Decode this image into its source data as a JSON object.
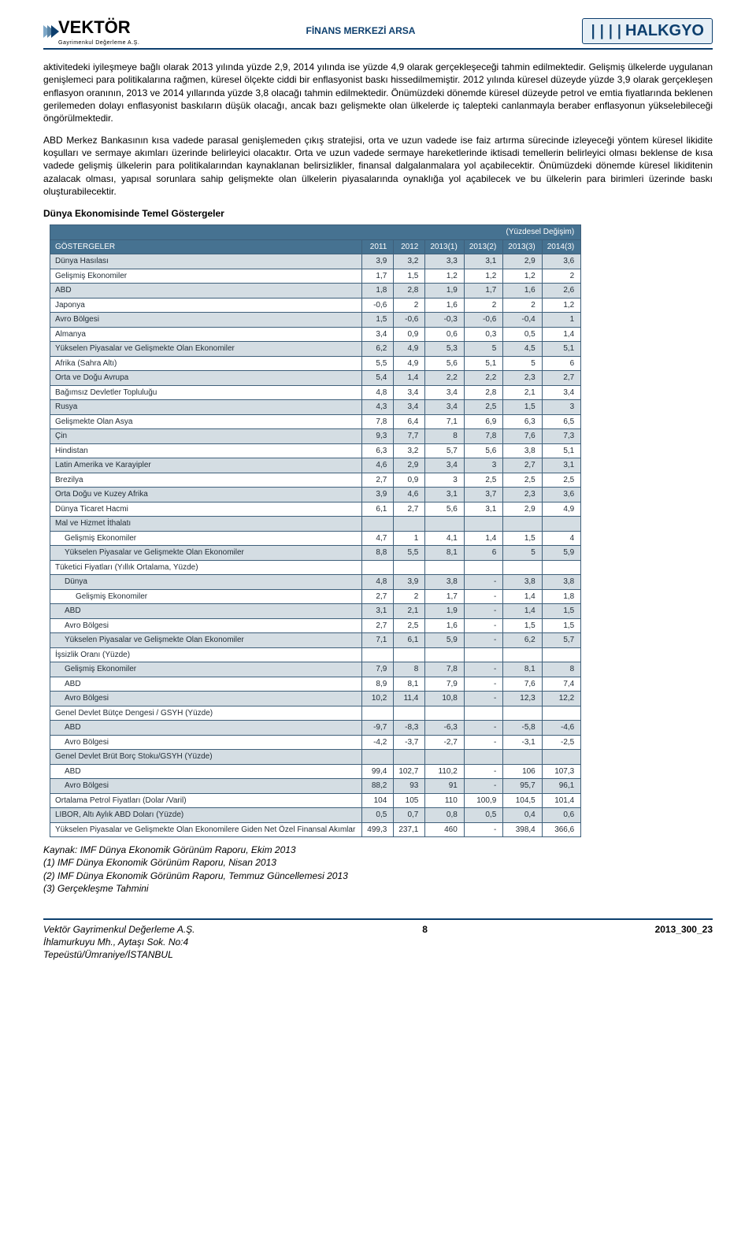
{
  "header": {
    "left_brand": "VEKTÖR",
    "left_sub": "Gayrimenkul Değerleme A.Ş.",
    "mid": "FİNANS MERKEZİ ARSA",
    "right_brand": "HALKGYO",
    "mid_color": "#0d3f6e",
    "rule_color": "#0d3f6e",
    "arrow_colors": [
      "#7da7c7",
      "#5b86a7",
      "#0d3f6e"
    ]
  },
  "paragraphs": {
    "p1": "aktivitedeki iyileşmeye bağlı olarak 2013 yılında yüzde 2,9, 2014 yılında ise yüzde 4,9 olarak gerçekleşeceği tahmin edilmektedir. Gelişmiş ülkelerde uygulanan genişlemeci para politikalarına rağmen, küresel ölçekte ciddi bir enflasyonist baskı hissedilmemiştir. 2012 yılında küresel düzeyde yüzde 3,9 olarak gerçekleşen enflasyon oranının, 2013 ve 2014 yıllarında yüzde 3,8 olacağı tahmin edilmektedir. Önümüzdeki dönemde küresel düzeyde petrol ve emtia fiyatlarında beklenen gerilemeden dolayı enflasyonist baskıların düşük olacağı, ancak bazı gelişmekte olan ülkelerde iç talepteki canlanmayla beraber enflasyonun yükselebileceği öngörülmektedir.",
    "p2": "ABD Merkez Bankasının kısa vadede parasal genişlemeden çıkış stratejisi, orta ve uzun vadede ise faiz artırma sürecinde izleyeceği yöntem küresel likidite koşulları ve sermaye akımları üzerinde belirleyici olacaktır. Orta ve uzun vadede sermaye hareketlerinde iktisadi temellerin belirleyici olması beklense de kısa vadede gelişmiş ülkelerin para politikalarından kaynaklanan belirsizlikler, finansal dalgalanmalara yol açabilecektir. Önümüzdeki dönemde küresel likiditenin azalacak olması, yapısal sorunlara sahip gelişmekte olan ülkelerin piyasalarında oynaklığa yol açabilecek ve bu ülkelerin para birimleri üzerinde baskı oluşturabilecektir.",
    "sect_title": "Dünya Ekonomisinde Temel Göstergeler"
  },
  "table": {
    "border_color": "#3e5f7a",
    "header_bg": "#467291",
    "header_fg": "#ffffff",
    "row_alt_bg": "#d4dde3",
    "row_bg": "#ffffff",
    "cell_fg": "#222d36",
    "font_size": 10,
    "note": "(Yüzdesel Değişim)",
    "col0": "GÖSTERGELER",
    "headers": [
      "2011",
      "2012",
      "2013(1)",
      "2013(2)",
      "2013(3)",
      "2014(3)"
    ],
    "rows": [
      {
        "k": "Dünya Hasılası",
        "v": [
          3.9,
          3.2,
          3.3,
          3.1,
          2.9,
          3.6
        ],
        "pad": 0
      },
      {
        "k": "Gelişmiş Ekonomiler",
        "v": [
          1.7,
          1.5,
          1.2,
          1.2,
          1.2,
          2
        ],
        "pad": 0
      },
      {
        "k": "ABD",
        "v": [
          1.8,
          2.8,
          1.9,
          1.7,
          1.6,
          2.6
        ],
        "pad": 0
      },
      {
        "k": "Japonya",
        "v": [
          -0.6,
          2,
          1.6,
          2,
          2,
          1.2
        ],
        "pad": 0
      },
      {
        "k": "Avro Bölgesi",
        "v": [
          1.5,
          -0.6,
          -0.3,
          -0.6,
          -0.4,
          1
        ],
        "pad": 0
      },
      {
        "k": "Almanya",
        "v": [
          3.4,
          0.9,
          0.6,
          0.3,
          0.5,
          1.4
        ],
        "pad": 0
      },
      {
        "k": "Yükselen Piyasalar ve Gelişmekte Olan Ekonomiler",
        "v": [
          6.2,
          4.9,
          5.3,
          5,
          4.5,
          5.1
        ],
        "pad": 0
      },
      {
        "k": "Afrika (Sahra Altı)",
        "v": [
          5.5,
          4.9,
          5.6,
          5.1,
          5,
          6
        ],
        "pad": 0
      },
      {
        "k": "Orta ve Doğu Avrupa",
        "v": [
          5.4,
          1.4,
          2.2,
          2.2,
          2.3,
          2.7
        ],
        "pad": 0
      },
      {
        "k": "Bağımsız Devletler Topluluğu",
        "v": [
          4.8,
          3.4,
          3.4,
          2.8,
          2.1,
          3.4
        ],
        "pad": 0
      },
      {
        "k": "Rusya",
        "v": [
          4.3,
          3.4,
          3.4,
          2.5,
          1.5,
          3
        ],
        "pad": 0
      },
      {
        "k": "Gelişmekte Olan Asya",
        "v": [
          7.8,
          6.4,
          7.1,
          6.9,
          6.3,
          6.5
        ],
        "pad": 0
      },
      {
        "k": "Çin",
        "v": [
          9.3,
          7.7,
          8,
          7.8,
          7.6,
          7.3
        ],
        "pad": 0
      },
      {
        "k": "Hindistan",
        "v": [
          6.3,
          3.2,
          5.7,
          5.6,
          3.8,
          5.1
        ],
        "pad": 0
      },
      {
        "k": "Latin Amerika ve Karayipler",
        "v": [
          4.6,
          2.9,
          3.4,
          3,
          2.7,
          3.1
        ],
        "pad": 0
      },
      {
        "k": "Brezilya",
        "v": [
          2.7,
          0.9,
          3,
          2.5,
          2.5,
          2.5
        ],
        "pad": 0
      },
      {
        "k": "Orta Doğu ve Kuzey Afrika",
        "v": [
          3.9,
          4.6,
          3.1,
          3.7,
          2.3,
          3.6
        ],
        "pad": 0
      },
      {
        "k": "Dünya Ticaret Hacmi",
        "v": [
          6.1,
          2.7,
          5.6,
          3.1,
          2.9,
          4.9
        ],
        "pad": 0
      },
      {
        "k": "Mal ve Hizmet İthalatı",
        "v": [
          null,
          null,
          null,
          null,
          null,
          null
        ],
        "pad": 0
      },
      {
        "k": "Gelişmiş Ekonomiler",
        "v": [
          4.7,
          1,
          4.1,
          1.4,
          1.5,
          4
        ],
        "pad": 1
      },
      {
        "k": "Yükselen Piyasalar ve Gelişmekte Olan Ekonomiler",
        "v": [
          8.8,
          5.5,
          8.1,
          6,
          5,
          5.9
        ],
        "pad": 1
      },
      {
        "k": "Tüketici Fiyatları (Yıllık Ortalama, Yüzde)",
        "v": [
          null,
          null,
          null,
          null,
          null,
          null
        ],
        "pad": 0
      },
      {
        "k": "Dünya",
        "v": [
          4.8,
          3.9,
          3.8,
          "-",
          3.8,
          3.8
        ],
        "pad": 1
      },
      {
        "k": "Gelişmiş Ekonomiler",
        "v": [
          2.7,
          2,
          1.7,
          "-",
          1.4,
          1.8
        ],
        "pad": 2
      },
      {
        "k": "ABD",
        "v": [
          3.1,
          2.1,
          1.9,
          "-",
          1.4,
          1.5
        ],
        "pad": 1
      },
      {
        "k": "Avro Bölgesi",
        "v": [
          2.7,
          2.5,
          1.6,
          "-",
          1.5,
          1.5
        ],
        "pad": 1
      },
      {
        "k": "Yükselen Piyasalar ve Gelişmekte Olan Ekonomiler",
        "v": [
          7.1,
          6.1,
          5.9,
          "-",
          6.2,
          5.7
        ],
        "pad": 1
      },
      {
        "k": "İşsizlik Oranı (Yüzde)",
        "v": [
          null,
          null,
          null,
          null,
          null,
          null
        ],
        "pad": 0
      },
      {
        "k": "Gelişmiş Ekonomiler",
        "v": [
          7.9,
          8,
          7.8,
          "-",
          8.1,
          8
        ],
        "pad": 1
      },
      {
        "k": "ABD",
        "v": [
          8.9,
          8.1,
          7.9,
          "-",
          7.6,
          7.4
        ],
        "pad": 1
      },
      {
        "k": "Avro Bölgesi",
        "v": [
          10.2,
          11.4,
          10.8,
          "-",
          12.3,
          12.2
        ],
        "pad": 1
      },
      {
        "k": "Genel Devlet Bütçe Dengesi / GSYH (Yüzde)",
        "v": [
          null,
          null,
          null,
          null,
          null,
          null
        ],
        "pad": 0
      },
      {
        "k": "ABD",
        "v": [
          -9.7,
          -8.3,
          -6.3,
          "-",
          -5.8,
          -4.6
        ],
        "pad": 1
      },
      {
        "k": "Avro Bölgesi",
        "v": [
          -4.2,
          -3.7,
          -2.7,
          "-",
          -3.1,
          -2.5
        ],
        "pad": 1
      },
      {
        "k": "Genel Devlet Brüt Borç Stoku/GSYH (Yüzde)",
        "v": [
          null,
          null,
          null,
          null,
          null,
          null
        ],
        "pad": 0
      },
      {
        "k": "ABD",
        "v": [
          99.4,
          102.7,
          "110,2",
          "-",
          106,
          107.3
        ],
        "pad": 1
      },
      {
        "k": "Avro Bölgesi",
        "v": [
          88.2,
          93,
          91,
          "-",
          95.7,
          96.1
        ],
        "pad": 1
      },
      {
        "k": "Ortalama Petrol Fiyatları (Dolar /Varil)",
        "v": [
          104,
          105,
          110,
          "100,9",
          104.5,
          101.4
        ],
        "pad": 0
      },
      {
        "k": "LIBOR, Altı Aylık ABD Doları (Yüzde)",
        "v": [
          0.5,
          0.7,
          0.8,
          0.5,
          0.4,
          0.6
        ],
        "pad": 0
      },
      {
        "k": "Yükselen Piyasalar ve Gelişmekte Olan Ekonomilere Giden Net Özel Finansal Akımlar",
        "v": [
          499.3,
          237.1,
          "460",
          "-",
          398.4,
          366.6
        ],
        "pad": 0
      }
    ]
  },
  "source": {
    "s0": "Kaynak: IMF Dünya Ekonomik Görünüm Raporu, Ekim 2013",
    "s1": "(1) IMF Dünya Ekonomik Görünüm Raporu, Nisan 2013",
    "s2": "(2) IMF Dünya Ekonomik Görünüm Raporu, Temmuz Güncellemesi 2013",
    "s3": "(3) Gerçekleşme Tahmini"
  },
  "footer": {
    "l1": "Vektör Gayrimenkul Değerleme A.Ş.",
    "l2": "İhlamurkuyu Mh., Aytaşı Sok. No:4",
    "l3": "Tepeüstü/Ümraniye/İSTANBUL",
    "page": "8",
    "code": "2013_300_23"
  }
}
